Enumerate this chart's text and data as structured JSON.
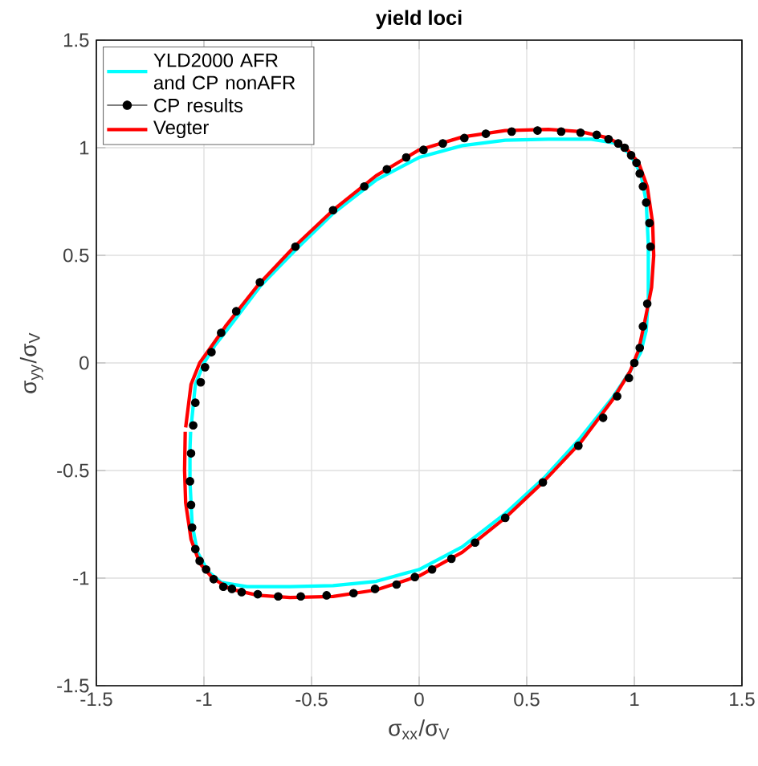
{
  "chart_data": {
    "type": "line",
    "title": "yield loci",
    "xlabel": "σ$_{xx}$/σ$_{V}$",
    "ylabel": "σ$_{yy}$/σ$_{V}$",
    "xlim": [
      -1.5,
      1.5
    ],
    "ylim": [
      -1.5,
      1.5
    ],
    "xticks": [
      -1.5,
      -1,
      -0.5,
      0,
      0.5,
      1,
      1.5
    ],
    "yticks": [
      -1.5,
      -1,
      -0.5,
      0,
      0.5,
      1,
      1.5
    ],
    "grid": true,
    "legend": "top left",
    "marker": "circle",
    "series": [
      {
        "name": "YLD2000 AFR and CP nonAFR",
        "marker": "none",
        "color": "#00ffff",
        "x": [
          -1.06,
          -1.04,
          -1.0,
          -0.95,
          -0.88,
          -0.74,
          -0.57,
          -0.4,
          -0.2,
          0.0,
          0.2,
          0.4,
          0.6,
          0.8,
          0.92,
          0.98,
          1.03,
          1.055,
          1.065,
          1.065,
          1.055,
          1.03,
          0.98,
          0.9,
          0.74,
          0.58,
          0.4,
          0.2,
          0.0,
          -0.2,
          -0.4,
          -0.6,
          -0.8,
          -0.92,
          -0.98,
          -1.03,
          -1.055,
          -1.065,
          -1.065,
          -1.062
        ],
        "values": [
          -0.3,
          -0.1,
          0.0,
          0.08,
          0.17,
          0.355,
          0.53,
          0.695,
          0.85,
          0.955,
          1.01,
          1.035,
          1.04,
          1.04,
          1.02,
          0.97,
          0.88,
          0.75,
          0.55,
          0.3,
          0.15,
          0.05,
          -0.04,
          -0.16,
          -0.36,
          -0.535,
          -0.7,
          -0.855,
          -0.96,
          -1.015,
          -1.035,
          -1.04,
          -1.04,
          -1.02,
          -0.97,
          -0.88,
          -0.75,
          -0.55,
          -0.4,
          -0.32
        ]
      },
      {
        "name": "CP results",
        "type": "scatter",
        "color": "#000000",
        "x": [
          -1.015,
          -0.995,
          -0.965,
          -0.92,
          -0.85,
          -0.74,
          -0.575,
          -0.4,
          -0.255,
          -0.15,
          -0.06,
          0.02,
          0.11,
          0.21,
          0.31,
          0.43,
          0.55,
          0.66,
          0.75,
          0.825,
          0.88,
          0.925,
          0.955,
          0.985,
          1.01,
          1.025,
          1.04,
          1.055,
          1.07,
          1.075,
          1.06,
          1.04,
          1.025,
          1.0,
          0.975,
          0.92,
          0.855,
          0.74,
          0.575,
          0.4,
          0.26,
          0.15,
          0.06,
          -0.02,
          -0.105,
          -0.205,
          -0.305,
          -0.43,
          -0.55,
          -0.655,
          -0.75,
          -0.825,
          -0.87,
          -0.91,
          -0.955,
          -0.99,
          -1.02,
          -1.04,
          -1.055,
          -1.06,
          -1.065,
          -1.06,
          -1.05,
          -1.04
        ],
        "values": [
          -0.09,
          -0.02,
          0.05,
          0.14,
          0.24,
          0.375,
          0.54,
          0.71,
          0.82,
          0.9,
          0.955,
          0.99,
          1.02,
          1.045,
          1.065,
          1.075,
          1.08,
          1.075,
          1.07,
          1.06,
          1.04,
          1.02,
          1.0,
          0.965,
          0.93,
          0.88,
          0.82,
          0.745,
          0.65,
          0.54,
          0.275,
          0.17,
          0.07,
          0.0,
          -0.07,
          -0.155,
          -0.255,
          -0.385,
          -0.555,
          -0.72,
          -0.835,
          -0.91,
          -0.96,
          -0.995,
          -1.03,
          -1.05,
          -1.07,
          -1.08,
          -1.085,
          -1.085,
          -1.075,
          -1.065,
          -1.05,
          -1.04,
          -1.005,
          -0.96,
          -0.92,
          -0.865,
          -0.765,
          -0.66,
          -0.55,
          -0.42,
          -0.29,
          -0.185
        ]
      },
      {
        "name": "Vegter",
        "marker": "none",
        "color": "#ff0000",
        "x": [
          -1.085,
          -1.06,
          -1.02,
          -0.97,
          -0.9,
          -0.75,
          -0.58,
          -0.4,
          -0.2,
          0.0,
          0.2,
          0.4,
          0.6,
          0.75,
          0.88,
          0.96,
          1.02,
          1.06,
          1.085,
          1.09,
          1.08,
          1.05,
          1.02,
          0.98,
          0.9,
          0.75,
          0.58,
          0.4,
          0.2,
          0.0,
          -0.2,
          -0.4,
          -0.6,
          -0.75,
          -0.88,
          -0.96,
          -1.02,
          -1.06,
          -1.085,
          -1.09,
          -1.087
        ],
        "values": [
          -0.3,
          -0.1,
          0.0,
          0.07,
          0.17,
          0.36,
          0.54,
          0.71,
          0.87,
          0.99,
          1.05,
          1.08,
          1.085,
          1.075,
          1.045,
          1.0,
          0.93,
          0.82,
          0.65,
          0.5,
          0.35,
          0.2,
          0.06,
          -0.04,
          -0.17,
          -0.37,
          -0.55,
          -0.72,
          -0.88,
          -0.99,
          -1.055,
          -1.085,
          -1.09,
          -1.08,
          -1.05,
          -1.0,
          -0.93,
          -0.82,
          -0.65,
          -0.5,
          -0.32
        ]
      }
    ]
  }
}
